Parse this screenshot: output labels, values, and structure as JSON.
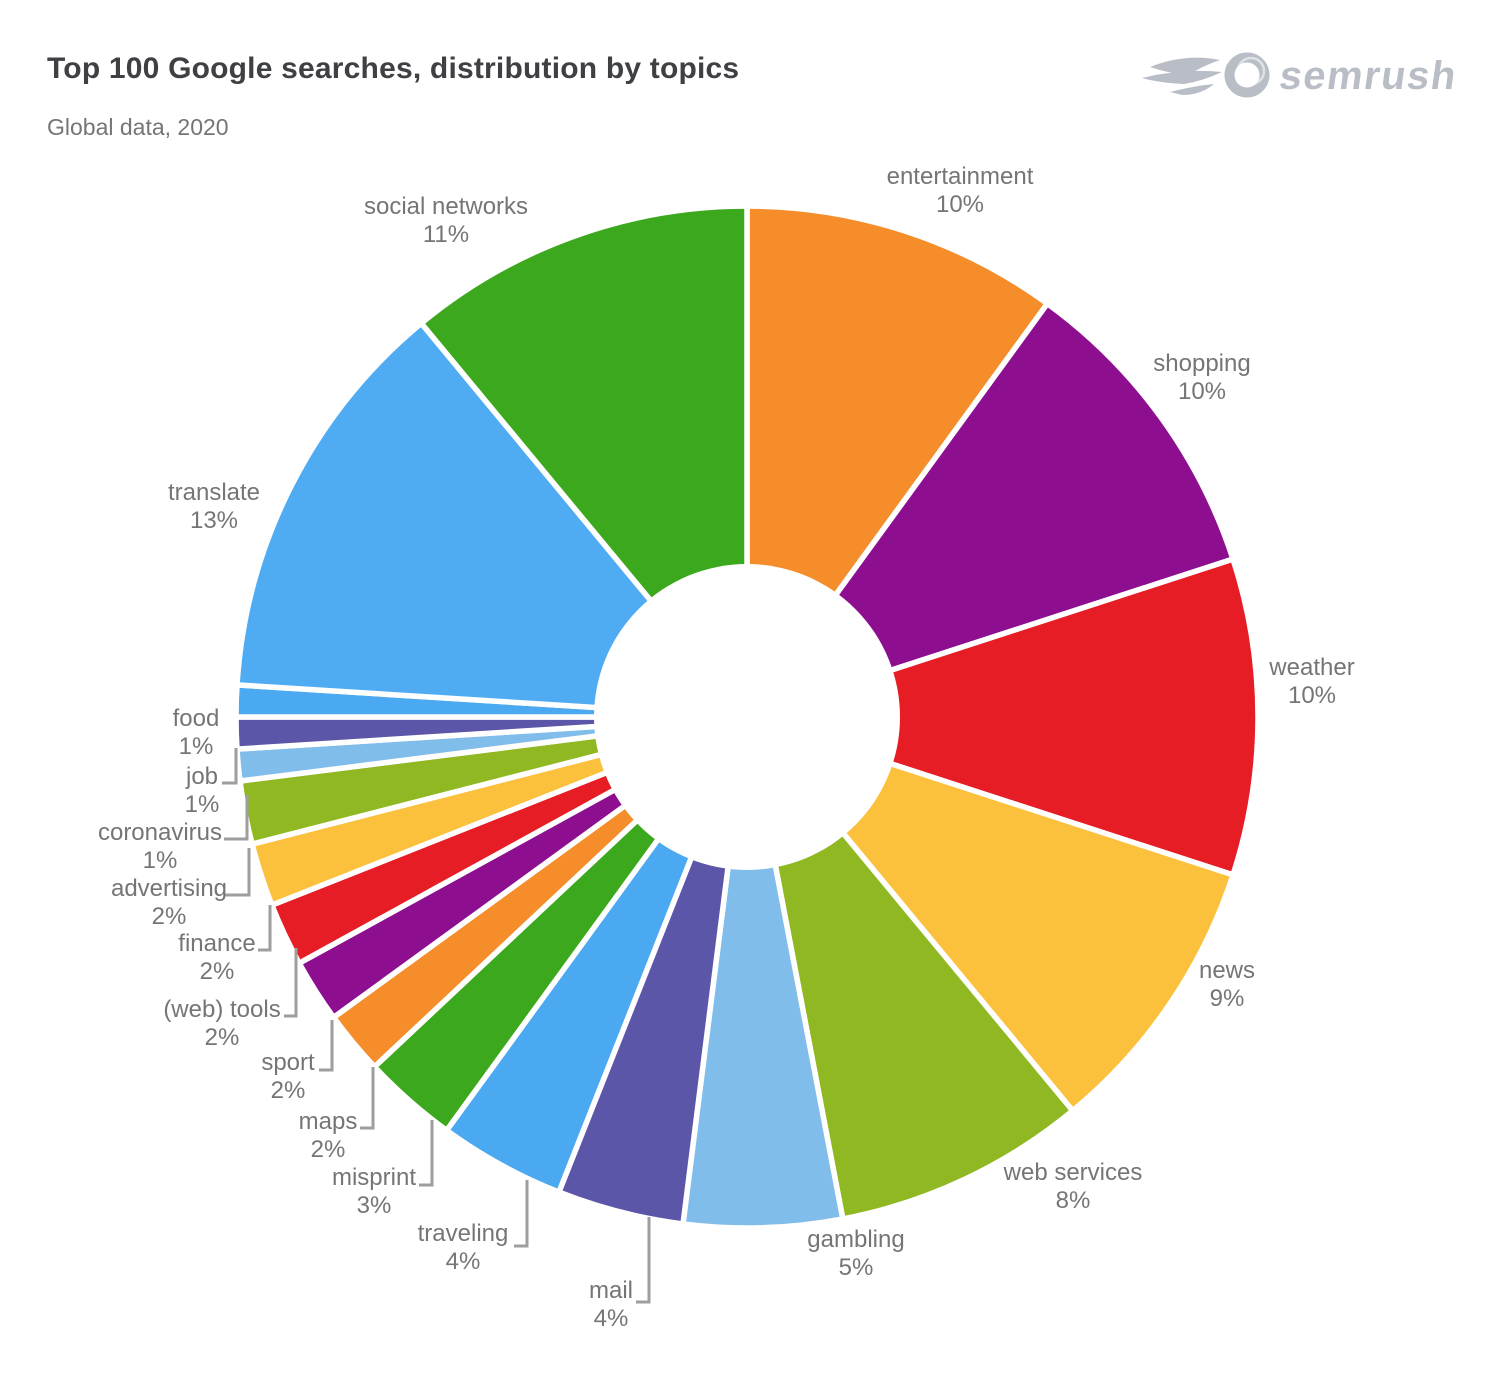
{
  "header": {
    "title": "Top 100 Google searches, distribution by topics",
    "subtitle": "Global data, 2020",
    "logo_text": "semrush",
    "logo_color": "#b9bec6"
  },
  "chart_data": {
    "type": "pie",
    "title": "Top 100 Google searches, distribution by topics",
    "subtitle": "Global data, 2020",
    "donut": true,
    "start_angle": "12 o'clock, clockwise",
    "total": 100,
    "label_color": "#757575",
    "leader_color": "#9e9e9e",
    "gap_color": "#ffffff",
    "slices": [
      {
        "label": "entertainment",
        "value": 10,
        "color": "#F68D2B",
        "leader": false
      },
      {
        "label": "shopping",
        "value": 10,
        "color": "#8D0F90",
        "leader": false
      },
      {
        "label": "weather",
        "value": 10,
        "color": "#E71D25",
        "leader": false
      },
      {
        "label": "news",
        "value": 9,
        "color": "#FBC03C",
        "leader": false
      },
      {
        "label": "web services",
        "value": 8,
        "color": "#90B822",
        "leader": false
      },
      {
        "label": "gambling",
        "value": 5,
        "color": "#81BDEA",
        "leader": false
      },
      {
        "label": "mail",
        "value": 4,
        "color": "#5C56A8",
        "leader": true
      },
      {
        "label": "traveling",
        "value": 4,
        "color": "#4AA9F0",
        "leader": true
      },
      {
        "label": "misprint",
        "value": 3,
        "color": "#3CA81D",
        "leader": true
      },
      {
        "label": "maps",
        "value": 2,
        "color": "#F68D2B",
        "leader": true
      },
      {
        "label": "sport",
        "value": 2,
        "color": "#8D0F90",
        "leader": true
      },
      {
        "label": "(web) tools",
        "value": 2,
        "color": "#E71D25",
        "leader": true
      },
      {
        "label": "finance",
        "value": 2,
        "color": "#FBC03C",
        "leader": true
      },
      {
        "label": "advertising",
        "value": 2,
        "color": "#90B822",
        "leader": true
      },
      {
        "label": "coronavirus",
        "value": 1,
        "color": "#81BDEA",
        "leader": true
      },
      {
        "label": "job",
        "value": 1,
        "color": "#5C56A8",
        "leader": true
      },
      {
        "label": "food",
        "value": 1,
        "color": "#4AA9F0",
        "leader": false
      },
      {
        "label": "translate",
        "value": 13,
        "color": "#4FACF2",
        "leader": false
      },
      {
        "label": "social networks",
        "value": 11,
        "color": "#3CA81D",
        "leader": false
      }
    ]
  }
}
